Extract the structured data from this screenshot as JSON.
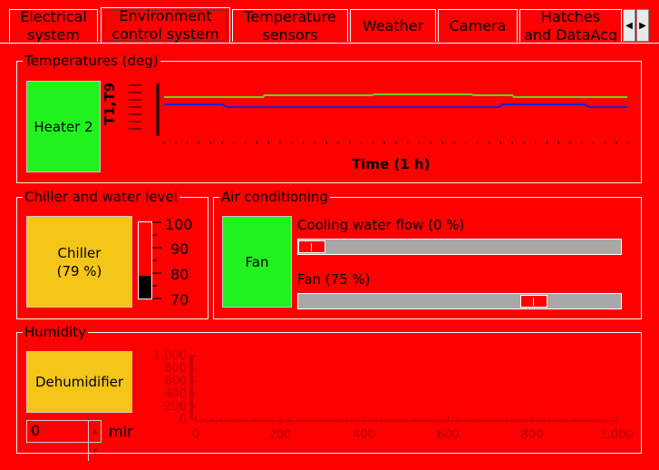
{
  "tabs": [
    {
      "label": "Electrical\nsystem"
    },
    {
      "label": "Environment\ncontrol system"
    },
    {
      "label": "Temperature\nsensors"
    },
    {
      "label": "Weather"
    },
    {
      "label": "Camera"
    },
    {
      "label": "Hatches\nand DataAcq"
    }
  ],
  "temperatures": {
    "legend": "Temperatures (deg)",
    "heater_label": "Heater 2",
    "y_axis_label": "T1,T9",
    "x_axis_label": "Time (1 h)",
    "series": [
      {
        "color": "#6bd21b"
      },
      {
        "color": "#1e20d0"
      }
    ]
  },
  "chiller": {
    "legend": "Chiller and water level",
    "button_label": "Chiller\n(79 %)",
    "level_ticks": [
      "100",
      "90",
      "80",
      "70"
    ],
    "level_value_fraction": 0.3
  },
  "air": {
    "legend": "Air conditioning",
    "fan_button": "Fan",
    "cooling_label": "Cooling water flow (0 %)",
    "cooling_value": 0,
    "fan_label": "Fan (75 %)",
    "fan_value": 75
  },
  "humidity": {
    "legend": "Humidity",
    "button_label": "Dehumidifier",
    "spin_value": "0",
    "unit_label": "mir",
    "y_ticks": [
      "1,000",
      "800",
      "600",
      "400",
      "200",
      "0"
    ],
    "x_ticks": [
      "0",
      "200",
      "400",
      "600",
      "800",
      "1,000"
    ]
  },
  "colors": {
    "background": "#ff0000",
    "green": "#21f21f",
    "yellow": "#f5c518"
  }
}
